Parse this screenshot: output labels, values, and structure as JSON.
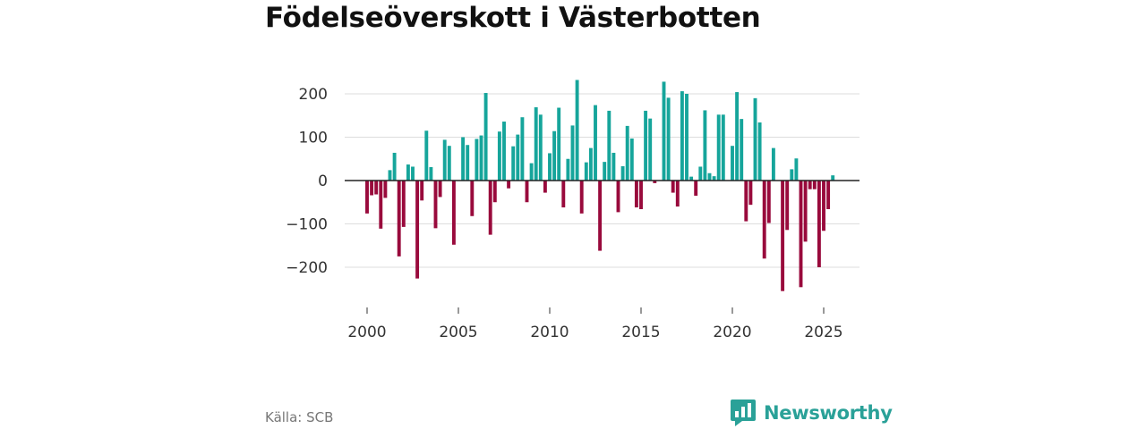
{
  "chart_data": {
    "type": "bar",
    "title": "Födelseöverskott i Västerbotten",
    "xlabel": "",
    "ylabel": "",
    "xlim": [
      1999.7,
      2027.2
    ],
    "ylim": [
      -280,
      260
    ],
    "y_ticks": [
      -200,
      -100,
      0,
      100,
      200
    ],
    "y_tick_labels": [
      "−200",
      "−100",
      "0",
      "100",
      "200"
    ],
    "x_ticks": [
      2000,
      2005,
      2010,
      2015,
      2020,
      2025
    ],
    "x_tick_labels": [
      "2000",
      "2005",
      "2010",
      "2015",
      "2020",
      "2025"
    ],
    "grid": true,
    "frequency": "monthly",
    "positive_color": "#16a59b",
    "negative_color": "#990a3c",
    "series": [
      {
        "name": "Födelseöverskott",
        "x": [
          2000.0,
          2000.25,
          2000.5,
          2000.75,
          2001.0,
          2001.25,
          2001.5,
          2001.75,
          2002.0,
          2002.25,
          2002.5,
          2002.75,
          2003.0,
          2003.25,
          2003.5,
          2003.75,
          2004.0,
          2004.25,
          2004.5,
          2004.75,
          2005.0,
          2005.25,
          2005.5,
          2005.75,
          2006.0,
          2006.25,
          2006.5,
          2006.75,
          2007.0,
          2007.25,
          2007.5,
          2007.75,
          2008.0,
          2008.25,
          2008.5,
          2008.75,
          2009.0,
          2009.25,
          2009.5,
          2009.75,
          2010.0,
          2010.25,
          2010.5,
          2010.75,
          2011.0,
          2011.25,
          2011.5,
          2011.75,
          2012.0,
          2012.25,
          2012.5,
          2012.75,
          2013.0,
          2013.25,
          2013.5,
          2013.75,
          2014.0,
          2014.25,
          2014.5,
          2014.75,
          2015.0,
          2015.25,
          2015.5,
          2015.75,
          2016.0,
          2016.25,
          2016.5,
          2016.75,
          2017.0,
          2017.25,
          2017.5,
          2017.75,
          2018.0,
          2018.25,
          2018.5,
          2018.75,
          2019.0,
          2019.25,
          2019.5,
          2019.75,
          2020.0,
          2020.25,
          2020.5,
          2020.75,
          2021.0,
          2021.25,
          2021.5,
          2021.75,
          2022.0,
          2022.25,
          2022.5,
          2022.75,
          2023.0,
          2023.25,
          2023.5,
          2023.75,
          2024.0,
          2024.25,
          2024.5,
          2024.75,
          2025.0,
          2025.25,
          2025.5
        ],
        "values": [
          -76,
          -34,
          -32,
          -111,
          -40,
          24,
          64,
          -175,
          -107,
          37,
          32,
          -226,
          -46,
          115,
          31,
          -110,
          -38,
          94,
          80,
          -148,
          0,
          100,
          82,
          -82,
          96,
          104,
          202,
          -125,
          -50,
          113,
          136,
          -18,
          79,
          106,
          146,
          -50,
          40,
          169,
          152,
          -28,
          63,
          114,
          168,
          -62,
          50,
          127,
          232,
          -76,
          42,
          75,
          174,
          -162,
          43,
          161,
          64,
          -73,
          33,
          126,
          97,
          -62,
          -66,
          161,
          143,
          -6,
          0,
          228,
          191,
          -28,
          -60,
          206,
          200,
          9,
          -35,
          32,
          162,
          17,
          10,
          152,
          152,
          0,
          80,
          204,
          142,
          -94,
          -56,
          190,
          134,
          -180,
          -98,
          75,
          0,
          -255,
          -114,
          26,
          51,
          -246,
          -141,
          -20,
          -20,
          -200,
          -116,
          -66,
          12
        ]
      }
    ]
  },
  "source": "Källa: SCB",
  "brand": {
    "name": "Newsworthy",
    "icon": "bar-chart-icon",
    "color": "#2aa198"
  }
}
